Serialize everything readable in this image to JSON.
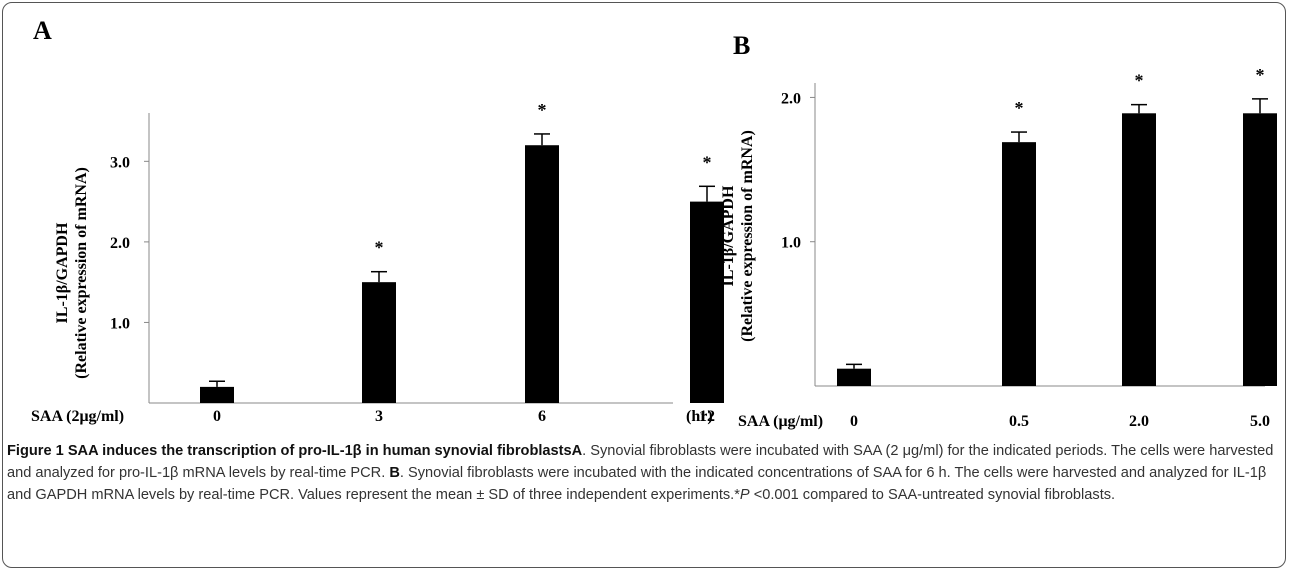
{
  "chart_data": [
    {
      "type": "bar",
      "panel_label": "A",
      "ylabel_line1": "IL-1β/GAPDH",
      "ylabel_line2": "(Relative expression of mRNA)",
      "x_prefix": "SAA (2μg/ml)",
      "x_unit": "(hr)",
      "categories": [
        "0",
        "3",
        "6",
        "12"
      ],
      "values": [
        0.2,
        1.5,
        3.2,
        2.5
      ],
      "errors": [
        0.07,
        0.13,
        0.14,
        0.19
      ],
      "significance": [
        "",
        "*",
        "*",
        "*"
      ],
      "ylim": [
        0,
        3.6
      ],
      "yticks": [
        1.0,
        2.0,
        3.0
      ],
      "ytick_labels": [
        "1.0",
        "2.0",
        "3.0"
      ],
      "bar_color": "#000000"
    },
    {
      "type": "bar",
      "panel_label": "B",
      "ylabel_line1": "IL-1β/GAPDH",
      "ylabel_line2": "(Relative expression of mRNA)",
      "x_prefix": "SAA (μg/ml)",
      "x_unit": "",
      "categories": [
        "0",
        "0.5",
        "2.0",
        "5.0"
      ],
      "values": [
        0.12,
        1.69,
        1.89,
        1.89
      ],
      "errors": [
        0.03,
        0.07,
        0.06,
        0.1
      ],
      "significance": [
        "",
        "*",
        "*",
        "*"
      ],
      "ylim": [
        0,
        2.1
      ],
      "yticks": [
        1.0,
        2.0
      ],
      "ytick_labels": [
        "1.0",
        "2.0"
      ],
      "bar_color": "#000000"
    }
  ],
  "caption": {
    "title": "Figure 1 SAA induces the transcription of pro-IL-1β in human synovial fibroblasts",
    "part_a_label": "A",
    "part_a_text": ". Synovial fibroblasts were incubated with SAA (2 μg/ml) for the indicated periods. The cells were harvested and analyzed for pro-IL-1β mRNA levels by real-time PCR. ",
    "part_b_label": "B",
    "part_b_text": ". Synovial fibroblasts were incubated with the indicated concentrations of SAA for 6 h. The cells were harvested and analyzed for IL-1β and GAPDH mRNA levels by real-time PCR. Values represent the mean ± SD of three independent experiments.*",
    "p_symbol": "P",
    "p_text": " <0.001 compared to SAA-untreated synovial fibroblasts."
  }
}
